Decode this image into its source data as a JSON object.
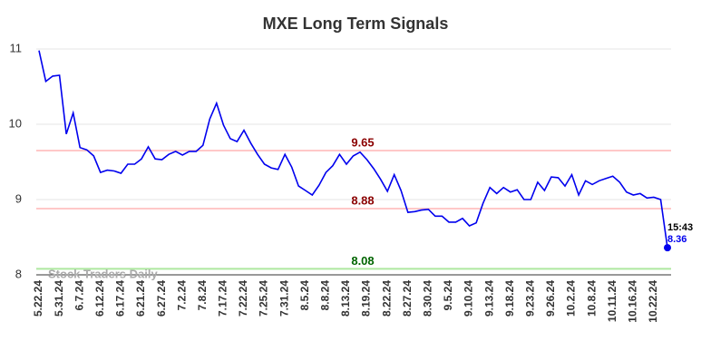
{
  "chart_data": {
    "type": "line",
    "title": "MXE Long Term Signals",
    "categories": [
      "5.22.24",
      null,
      null,
      "5.31.24",
      null,
      null,
      "6.7.24",
      null,
      null,
      "6.12.24",
      null,
      null,
      "6.17.24",
      null,
      null,
      "6.21.24",
      null,
      null,
      "6.27.24",
      null,
      null,
      "7.2.24",
      null,
      null,
      "7.8.24",
      null,
      null,
      "7.17.24",
      null,
      null,
      "7.22.24",
      null,
      null,
      "7.25.24",
      null,
      null,
      "7.31.24",
      null,
      null,
      "8.5.24",
      null,
      null,
      "8.8.24",
      null,
      null,
      "8.13.24",
      null,
      null,
      "8.19.24",
      null,
      null,
      "8.22.24",
      null,
      null,
      "8.27.24",
      null,
      null,
      "8.30.24",
      null,
      null,
      "9.5.24",
      null,
      null,
      "9.10.24",
      null,
      null,
      "9.13.24",
      null,
      null,
      "9.18.24",
      null,
      null,
      "9.23.24",
      null,
      null,
      "9.26.24",
      null,
      null,
      "10.2.24",
      null,
      null,
      "10.8.24",
      null,
      null,
      "10.11.24",
      null,
      null,
      "10.16.24",
      null,
      null,
      "10.22.24",
      null,
      null
    ],
    "values": [
      10.98,
      10.57,
      10.64,
      10.65,
      9.87,
      10.15,
      9.69,
      9.66,
      9.58,
      9.36,
      9.39,
      9.38,
      9.35,
      9.47,
      9.47,
      9.54,
      9.7,
      9.54,
      9.53,
      9.6,
      9.64,
      9.59,
      9.64,
      9.64,
      9.72,
      10.07,
      10.28,
      9.99,
      9.81,
      9.77,
      9.92,
      9.75,
      9.6,
      9.47,
      9.42,
      9.4,
      9.6,
      9.43,
      9.18,
      9.12,
      9.06,
      9.19,
      9.36,
      9.45,
      9.6,
      9.47,
      9.58,
      9.63,
      9.53,
      9.41,
      9.27,
      9.11,
      9.33,
      9.12,
      8.83,
      8.84,
      8.86,
      8.87,
      8.78,
      8.78,
      8.7,
      8.7,
      8.75,
      8.65,
      8.69,
      8.95,
      9.16,
      9.08,
      9.16,
      9.1,
      9.13,
      9.0,
      9.0,
      9.23,
      9.12,
      9.3,
      9.29,
      9.18,
      9.33,
      9.06,
      9.25,
      9.2,
      9.25,
      9.28,
      9.31,
      9.23,
      9.1,
      9.06,
      9.08,
      9.02,
      9.03,
      9.0,
      8.36
    ],
    "color": "#0000ee",
    "ylim": [
      8,
      11
    ],
    "yticks": [
      8,
      9,
      10,
      11
    ],
    "grid": true,
    "hlines": [
      {
        "value": 9.65,
        "color": "#ffc8c8",
        "label_color": "#8b0000"
      },
      {
        "value": 8.88,
        "color": "#ffc8c8",
        "label_color": "#8b0000"
      },
      {
        "value": 8.08,
        "color": "#aee8a0",
        "label_color": "#006400"
      }
    ],
    "last_time": "15:43",
    "watermark": "Stock Traders Daily"
  }
}
